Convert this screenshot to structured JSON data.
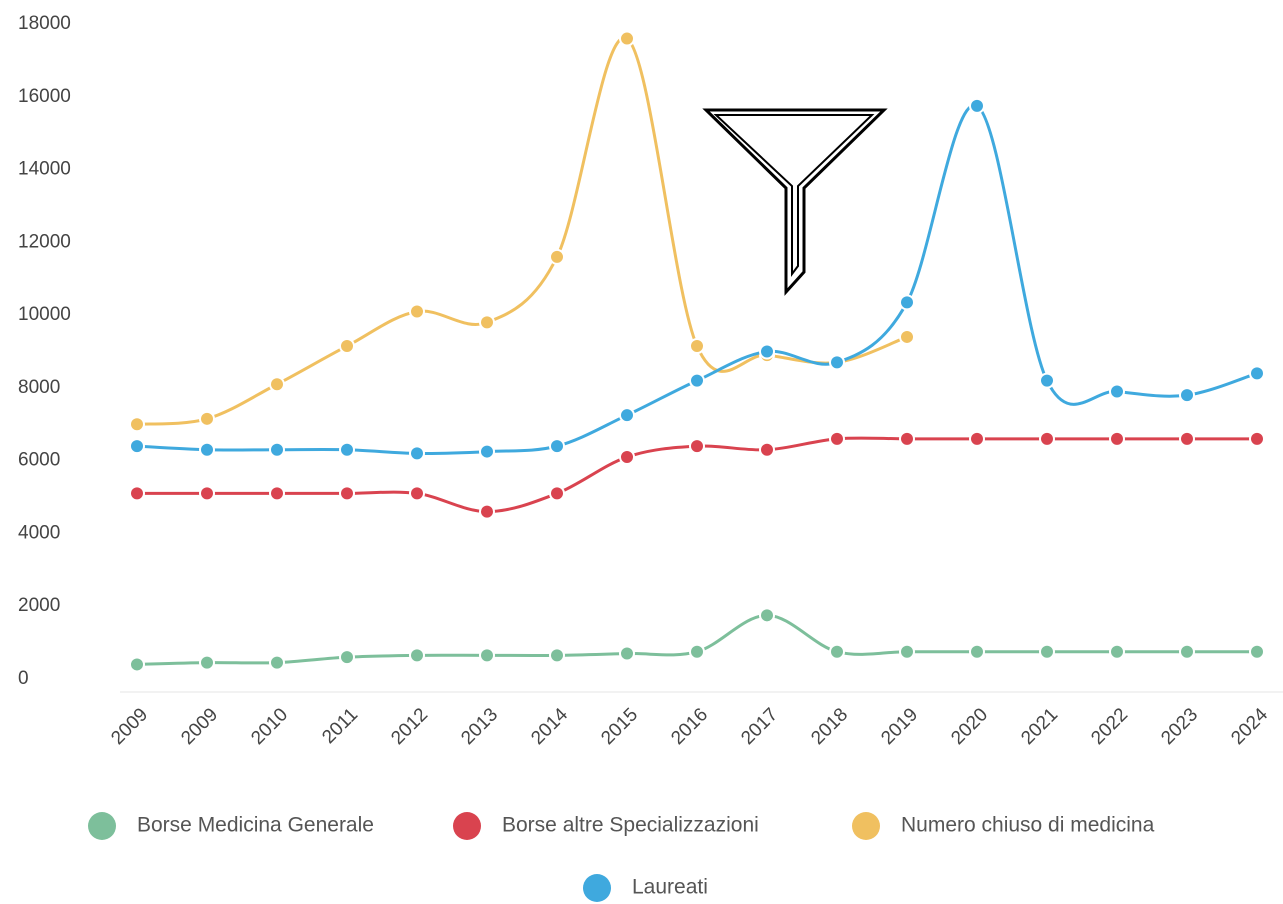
{
  "chart_data": {
    "type": "line",
    "categories": [
      "2009",
      "2009",
      "2010",
      "2011",
      "2012",
      "2013",
      "2014",
      "2015",
      "2016",
      "2017",
      "2018",
      "2019",
      "2020",
      "2021",
      "2022",
      "2023",
      "2024"
    ],
    "series": [
      {
        "name": "Borse Medicina Generale",
        "color": "#7dbf9b",
        "values": [
          400,
          450,
          450,
          600,
          650,
          650,
          650,
          700,
          750,
          1750,
          750,
          750,
          750,
          750,
          750,
          750,
          750
        ]
      },
      {
        "name": "Borse altre Specializzazioni",
        "color": "#d9434f",
        "values": [
          5100,
          5100,
          5100,
          5100,
          5100,
          4600,
          5100,
          6100,
          6400,
          6300,
          6600,
          6600,
          6600,
          6600,
          6600,
          6600,
          6600
        ]
      },
      {
        "name": "Numero chiuso di medicina",
        "color": "#f0c060",
        "values": [
          7000,
          7150,
          8100,
          9150,
          10100,
          9800,
          11600,
          17600,
          9150,
          8900,
          8700,
          9400,
          null,
          null,
          null,
          null,
          null
        ]
      },
      {
        "name": "Laureati",
        "color": "#3fa9de",
        "values": [
          6400,
          6300,
          6300,
          6300,
          6200,
          6250,
          6400,
          7250,
          8200,
          9000,
          8700,
          10350,
          15750,
          8200,
          7900,
          7800,
          8400
        ]
      }
    ],
    "ylim": [
      0,
      18000
    ],
    "yticks": [
      0,
      2000,
      4000,
      6000,
      8000,
      10000,
      12000,
      14000,
      16000,
      18000
    ],
    "grid": false
  }
}
